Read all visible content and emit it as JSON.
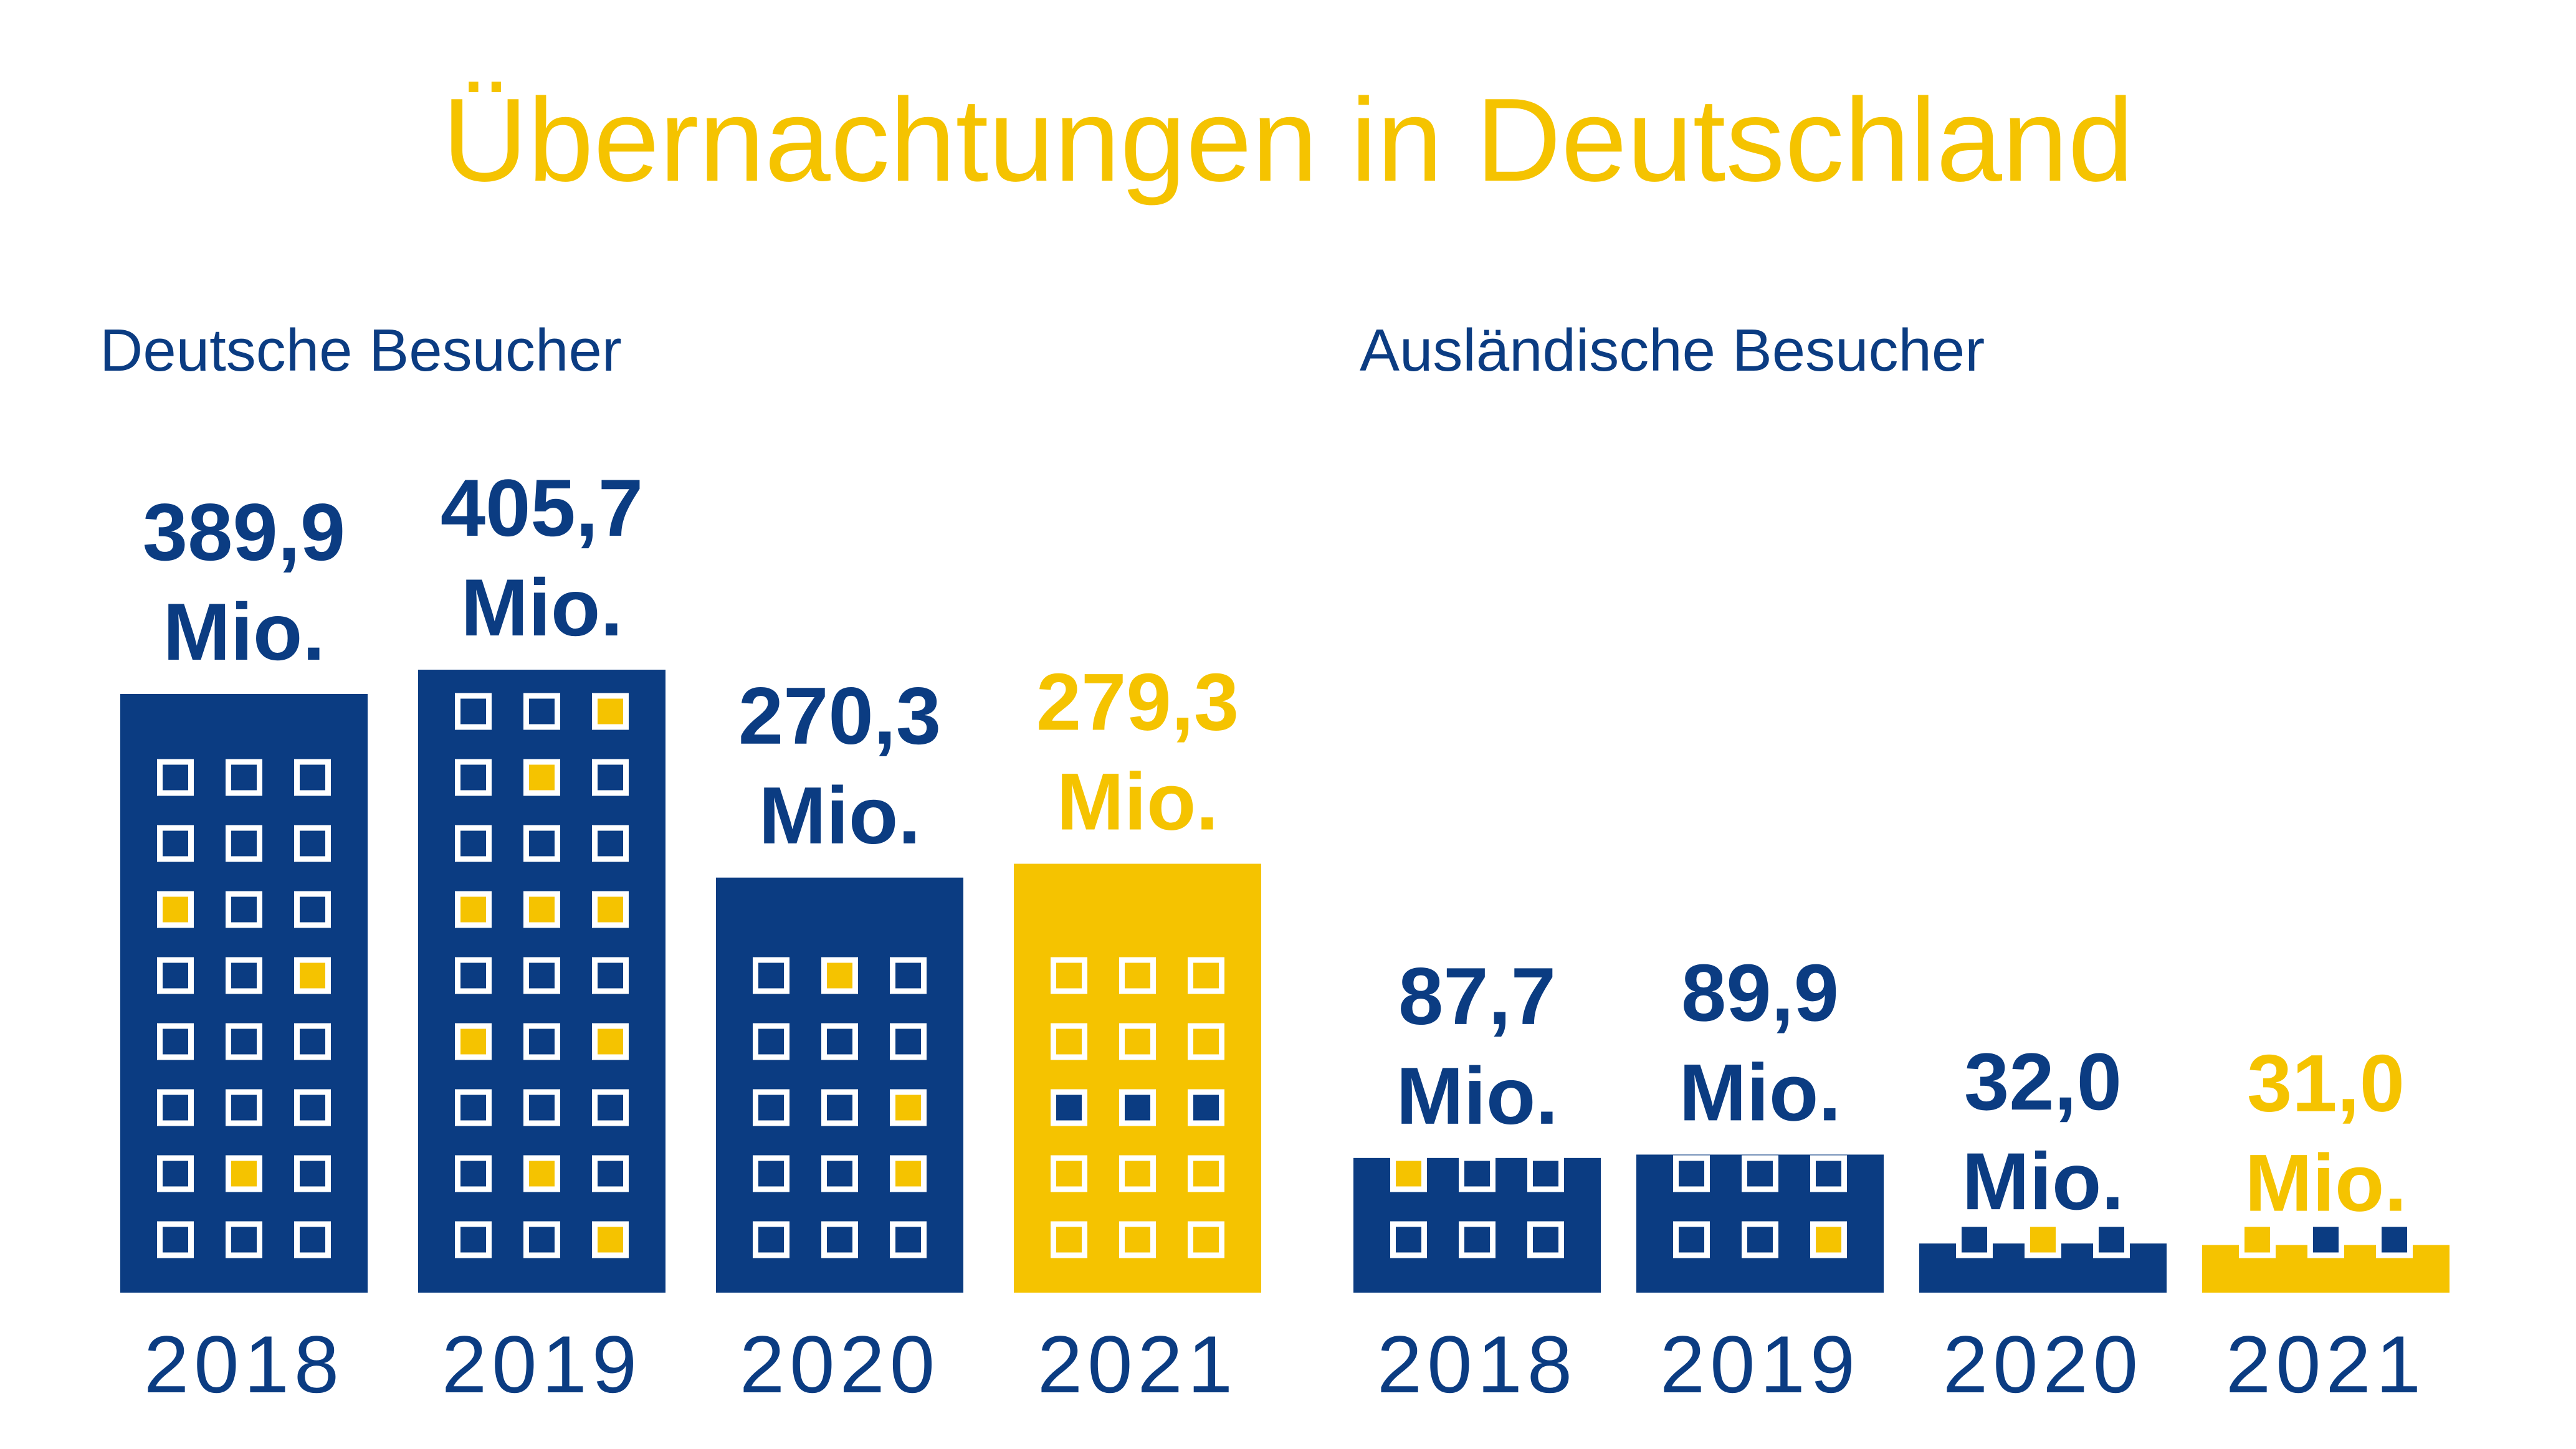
{
  "title": "Übernachtungen in Deutschland",
  "colors": {
    "navy": "#0b3c82",
    "yellow": "#f5c300",
    "window_outline": "#ffffff"
  },
  "chart_data": [
    {
      "type": "bar",
      "title": "Deutsche Besucher",
      "categories": [
        "2018",
        "2019",
        "2020",
        "2021"
      ],
      "values": [
        389.9,
        405.7,
        270.3,
        279.3
      ],
      "value_labels": [
        {
          "number": "389,9",
          "unit": "Mio."
        },
        {
          "number": "405,7",
          "unit": "Mio."
        },
        {
          "number": "270,3",
          "unit": "Mio."
        },
        {
          "number": "279,3",
          "unit": "Mio."
        }
      ],
      "bar_colors": [
        "navy",
        "navy",
        "navy",
        "yellow"
      ],
      "windows": [
        [
          "ooo",
          "ooo",
          "yoo",
          "ooy",
          "ooo",
          "ooo",
          "oyo",
          "ooo"
        ],
        [
          "ooy",
          "oyo",
          "ooo",
          "yyy",
          "ooo",
          "yoy",
          "ooo",
          "oyo",
          "ooy"
        ],
        [
          "oyo",
          "ooo",
          "ooy",
          "ooy",
          "ooo"
        ],
        [
          "ooo",
          "ooo",
          "nnn",
          "ooo",
          "ooo"
        ]
      ]
    },
    {
      "type": "bar",
      "title": "Ausländische Besucher",
      "categories": [
        "2018",
        "2019",
        "2020",
        "2021"
      ],
      "values": [
        87.7,
        89.9,
        32.0,
        31.0
      ],
      "value_labels": [
        {
          "number": "87,7",
          "unit": "Mio."
        },
        {
          "number": "89,9",
          "unit": "Mio."
        },
        {
          "number": "32,0",
          "unit": "Mio."
        },
        {
          "number": "31,0",
          "unit": "Mio."
        }
      ],
      "bar_colors": [
        "navy",
        "navy",
        "navy",
        "yellow"
      ],
      "windows": [
        [
          "yoo",
          "ooo"
        ],
        [
          "ooo",
          "ooy"
        ],
        [
          "oyo"
        ],
        [
          "onn"
        ]
      ]
    }
  ]
}
